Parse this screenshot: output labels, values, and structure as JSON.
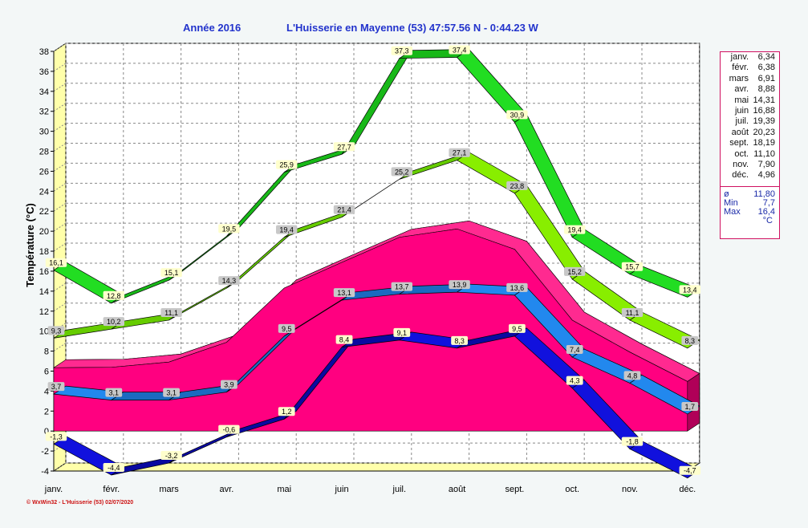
{
  "header": {
    "year_label": "Année  2016",
    "station_label": "L'Huisserie en Mayenne (53) 47:57.56 N - 0:44.23 W"
  },
  "footer": {
    "text": "© WxWin32 - L'Huisserie (53)  02/07/2020"
  },
  "legend": {
    "monthly": [
      {
        "month": "janv.",
        "value": "6,34"
      },
      {
        "month": "févr.",
        "value": "6,38"
      },
      {
        "month": "mars",
        "value": "6,91"
      },
      {
        "month": "avr.",
        "value": "8,88"
      },
      {
        "month": "mai",
        "value": "14,31"
      },
      {
        "month": "juin",
        "value": "16,88"
      },
      {
        "month": "juil.",
        "value": "19,39"
      },
      {
        "month": "août",
        "value": "20,23"
      },
      {
        "month": "sept.",
        "value": "18,19"
      },
      {
        "month": "oct.",
        "value": "11,10"
      },
      {
        "month": "nov.",
        "value": "7,90"
      },
      {
        "month": "déc.",
        "value": "4,96"
      }
    ],
    "avg_label": "ø",
    "avg_value": "11,80",
    "min_label": "Min",
    "min_value": "7,7",
    "max_label": "Max",
    "max_value": "16,4",
    "unit": "°C"
  },
  "colors": {
    "mean_area": "#ff0080",
    "max_abs": "#22dd22",
    "max_mean": "#88ee00",
    "min_mean": "#2288ee",
    "min_abs": "#1111dd",
    "plot_bg": "#ffffff",
    "floor": "#ffffaa",
    "title": "#2233cc"
  },
  "chart_data": {
    "type": "area",
    "ylabel": "Température  (°C)",
    "ylim": [
      -4,
      38
    ],
    "yticks": [
      -4,
      -2,
      0,
      2,
      4,
      6,
      8,
      10,
      12,
      14,
      16,
      18,
      20,
      22,
      24,
      26,
      28,
      30,
      32,
      34,
      36,
      38
    ],
    "grid": true,
    "categories": [
      "janv.",
      "févr.",
      "mars",
      "avr.",
      "mai",
      "juin",
      "juil.",
      "août",
      "sept.",
      "oct.",
      "nov.",
      "déc."
    ],
    "series": [
      {
        "key": "max_abs",
        "values": [
          16.1,
          12.8,
          15.1,
          19.5,
          25.9,
          27.7,
          37.3,
          37.4,
          30.9,
          19.4,
          15.7,
          13.4
        ],
        "labels": [
          "16,1",
          "12,8",
          "15,1",
          "19,5",
          "25,9",
          "27,7",
          "37,3",
          "37,4",
          "30,9",
          "19,4",
          "15,7",
          "13,4"
        ]
      },
      {
        "key": "max_mean",
        "values": [
          9.3,
          10.2,
          11.1,
          14.3,
          19.4,
          21.4,
          25.2,
          27.1,
          23.8,
          15.2,
          11.1,
          8.3
        ],
        "labels": [
          "9,3",
          "10,2",
          "11,1",
          "14,3",
          "19,4",
          "21,4",
          "25,2",
          "27,1",
          "23,8",
          "15,2",
          "11,1",
          "8,3"
        ]
      },
      {
        "key": "mean",
        "values": [
          6.34,
          6.38,
          6.91,
          8.88,
          14.31,
          16.88,
          19.39,
          20.23,
          18.19,
          11.1,
          7.9,
          4.96
        ]
      },
      {
        "key": "min_mean",
        "values": [
          3.7,
          3.1,
          3.1,
          3.9,
          9.5,
          13.1,
          13.7,
          13.9,
          13.6,
          7.4,
          4.8,
          1.7
        ],
        "labels": [
          "3,7",
          "3,1",
          "3,1",
          "3,9",
          "9,5",
          "13,1",
          "13,7",
          "13,9",
          "13,6",
          "7,4",
          "4,8",
          "1,7"
        ]
      },
      {
        "key": "min_abs",
        "values": [
          -1.3,
          -4.4,
          -3.2,
          -0.6,
          1.2,
          8.4,
          9.1,
          8.3,
          9.5,
          4.3,
          -1.8,
          -4.7
        ],
        "labels": [
          "-1,3",
          "-4,4",
          "-3,2",
          "-0,6",
          "1,2",
          "8,4",
          "9,1",
          "8,3",
          "9,5",
          "4,3",
          "-1,8",
          "-4,7"
        ]
      }
    ]
  }
}
